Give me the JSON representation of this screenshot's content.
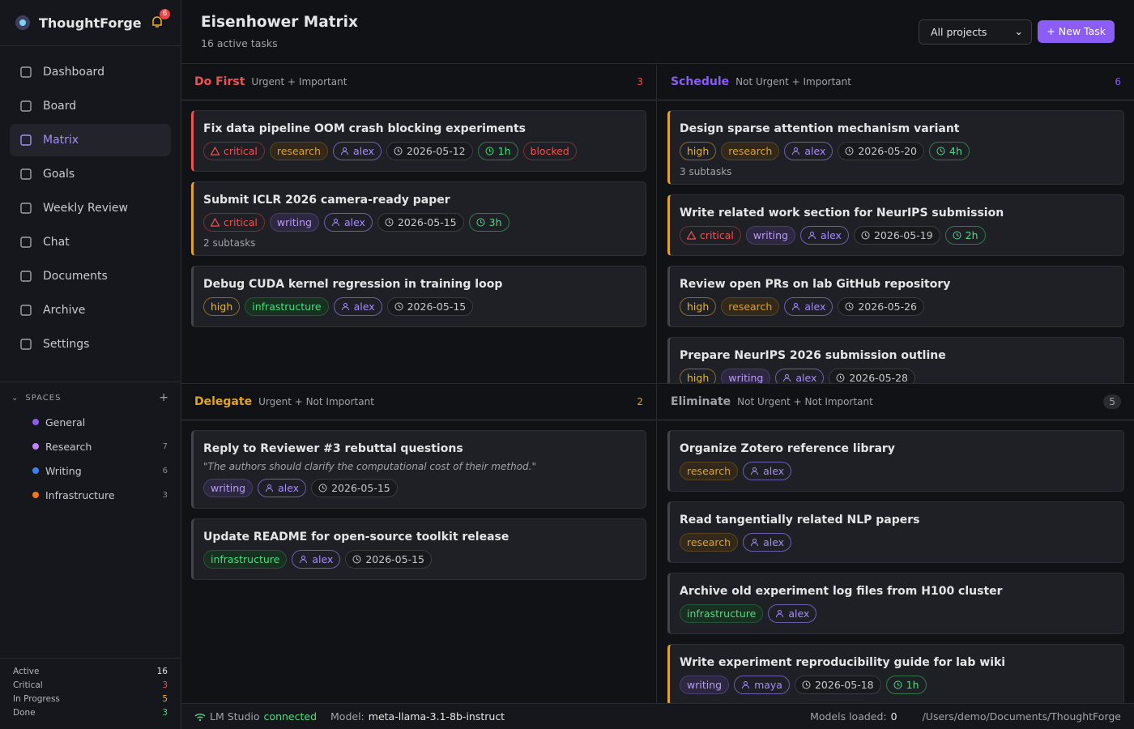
{
  "sidebar": {
    "brand": "ThoughtForge",
    "notifications": 6,
    "nav": [
      {
        "label": "Dashboard",
        "active": false
      },
      {
        "label": "Board",
        "active": false
      },
      {
        "label": "Matrix",
        "active": true
      },
      {
        "label": "Goals",
        "active": false
      },
      {
        "label": "Weekly Review",
        "active": false
      },
      {
        "label": "Chat",
        "active": false
      },
      {
        "label": "Documents",
        "active": false
      },
      {
        "label": "Archive",
        "active": false
      },
      {
        "label": "Settings",
        "active": false
      }
    ],
    "spaces_title": "SPACES",
    "spaces": [
      {
        "label": "General",
        "color": "#8b5cf6",
        "count": null
      },
      {
        "label": "Research",
        "color": "#c084fc",
        "count": 7
      },
      {
        "label": "Writing",
        "color": "#3b82f6",
        "count": 6
      },
      {
        "label": "Infrastructure",
        "color": "#f97316",
        "count": 3
      }
    ],
    "stats": [
      {
        "label": "Active",
        "value": 16,
        "color": "#e5e5e7"
      },
      {
        "label": "Critical",
        "value": 3,
        "color": "#f05252"
      },
      {
        "label": "In Progress",
        "value": 5,
        "color": "#f0b429"
      },
      {
        "label": "Done",
        "value": 3,
        "color": "#4ade80"
      }
    ]
  },
  "header": {
    "title": "Eisenhower Matrix",
    "subtitle": "16 active tasks",
    "filter": "All projects",
    "button": "+ New Task"
  },
  "quadrants": [
    {
      "title": "Do First",
      "subtitle": "Urgent + Important",
      "count": 3,
      "color": "#f05252",
      "pill": false,
      "tasks": [
        {
          "title": "Fix data pipeline OOM crash blocking experiments",
          "accent": "#f05252",
          "tags": [
            {
              "label": "critical",
              "style": "red",
              "icon": "warn"
            },
            {
              "label": "research",
              "style": "brown",
              "icon": null
            },
            {
              "label": "alex",
              "style": "user",
              "icon": "user"
            },
            {
              "label": "2026-05-12",
              "style": "date",
              "icon": "clock"
            },
            {
              "label": "1h",
              "style": "estimate",
              "icon": "clock"
            },
            {
              "label": "blocked",
              "style": "red",
              "icon": null
            }
          ]
        },
        {
          "title": "Submit ICLR 2026 camera-ready paper",
          "accent": "#e0a526",
          "tags": [
            {
              "label": "critical",
              "style": "red",
              "icon": "warn"
            },
            {
              "label": "writing",
              "style": "violet",
              "icon": null
            },
            {
              "label": "alex",
              "style": "user",
              "icon": "user"
            },
            {
              "label": "2026-05-15",
              "style": "date",
              "icon": "clock"
            },
            {
              "label": "3h",
              "style": "estimate",
              "icon": "clock"
            }
          ],
          "subtasks": "2 subtasks"
        },
        {
          "title": "Debug CUDA kernel regression in training loop",
          "accent": "#44454c",
          "tags": [
            {
              "label": "high",
              "style": "amber",
              "icon": null
            },
            {
              "label": "infrastructure",
              "style": "green",
              "icon": null
            },
            {
              "label": "alex",
              "style": "user",
              "icon": "user"
            },
            {
              "label": "2026-05-15",
              "style": "date",
              "icon": "clock"
            }
          ]
        }
      ]
    },
    {
      "title": "Schedule",
      "subtitle": "Not Urgent + Important",
      "count": 6,
      "color": "#8b5cf6",
      "pill": false,
      "tasks": [
        {
          "title": "Design sparse attention mechanism variant",
          "accent": "#e0a526",
          "tags": [
            {
              "label": "high",
              "style": "amber",
              "icon": null
            },
            {
              "label": "research",
              "style": "brown",
              "icon": null
            },
            {
              "label": "alex",
              "style": "user",
              "icon": "user"
            },
            {
              "label": "2026-05-20",
              "style": "date",
              "icon": "clock"
            },
            {
              "label": "4h",
              "style": "estimate",
              "icon": "clock"
            }
          ],
          "subtasks": "3 subtasks"
        },
        {
          "title": "Write related work section for NeurIPS submission",
          "accent": "#e0a526",
          "tags": [
            {
              "label": "critical",
              "style": "red",
              "icon": "warn"
            },
            {
              "label": "writing",
              "style": "violet",
              "icon": null
            },
            {
              "label": "alex",
              "style": "user",
              "icon": "user"
            },
            {
              "label": "2026-05-19",
              "style": "date",
              "icon": "clock"
            },
            {
              "label": "2h",
              "style": "estimate",
              "icon": "clock"
            }
          ]
        },
        {
          "title": "Review open PRs on lab GitHub repository",
          "accent": "#44454c",
          "tags": [
            {
              "label": "high",
              "style": "amber",
              "icon": null
            },
            {
              "label": "research",
              "style": "brown",
              "icon": null
            },
            {
              "label": "alex",
              "style": "user",
              "icon": "user"
            },
            {
              "label": "2026-05-26",
              "style": "date",
              "icon": "clock"
            }
          ]
        },
        {
          "title": "Prepare NeurIPS 2026 submission outline",
          "accent": "#44454c",
          "tags": [
            {
              "label": "high",
              "style": "amber",
              "icon": null
            },
            {
              "label": "writing",
              "style": "violet",
              "icon": null
            },
            {
              "label": "alex",
              "style": "user",
              "icon": "user"
            },
            {
              "label": "2026-05-28",
              "style": "date",
              "icon": "clock"
            }
          ]
        }
      ]
    },
    {
      "title": "Delegate",
      "subtitle": "Urgent + Not Important",
      "count": 2,
      "color": "#e0a526",
      "pill": false,
      "tasks": [
        {
          "title": "Reply to Reviewer #3 rebuttal questions",
          "accent": "#44454c",
          "quote": "\"The authors should clarify the computational cost of their method.\"",
          "tags": [
            {
              "label": "writing",
              "style": "violet",
              "icon": null
            },
            {
              "label": "alex",
              "style": "user",
              "icon": "user"
            },
            {
              "label": "2026-05-15",
              "style": "date",
              "icon": "clock"
            }
          ]
        },
        {
          "title": "Update README for open-source toolkit release",
          "accent": "#44454c",
          "tags": [
            {
              "label": "infrastructure",
              "style": "green",
              "icon": null
            },
            {
              "label": "alex",
              "style": "user",
              "icon": "user"
            },
            {
              "label": "2026-05-15",
              "style": "date",
              "icon": "clock"
            }
          ]
        }
      ]
    },
    {
      "title": "Eliminate",
      "subtitle": "Not Urgent + Not Important",
      "count": 5,
      "color": "#a1a1aa",
      "pill": true,
      "tasks": [
        {
          "title": "Organize Zotero reference library",
          "accent": "#44454c",
          "tags": [
            {
              "label": "research",
              "style": "brown",
              "icon": null
            },
            {
              "label": "alex",
              "style": "user",
              "icon": "user"
            }
          ]
        },
        {
          "title": "Read tangentially related NLP papers",
          "accent": "#44454c",
          "tags": [
            {
              "label": "research",
              "style": "brown",
              "icon": null
            },
            {
              "label": "alex",
              "style": "user",
              "icon": "user"
            }
          ]
        },
        {
          "title": "Archive old experiment log files from H100 cluster",
          "accent": "#44454c",
          "tags": [
            {
              "label": "infrastructure",
              "style": "green",
              "icon": null
            },
            {
              "label": "alex",
              "style": "user",
              "icon": "user"
            }
          ]
        },
        {
          "title": "Write experiment reproducibility guide for lab wiki",
          "accent": "#e0a526",
          "tags": [
            {
              "label": "writing",
              "style": "violet",
              "icon": null
            },
            {
              "label": "maya",
              "style": "user",
              "icon": "user"
            },
            {
              "label": "2026-05-18",
              "style": "date",
              "icon": "clock"
            },
            {
              "label": "1h",
              "style": "estimate",
              "icon": "clock"
            }
          ]
        }
      ]
    }
  ],
  "status": {
    "provider": "LM Studio",
    "state": "connected",
    "model_label": "Model:",
    "model": "meta-llama-3.1-8b-instruct",
    "loaded_label": "Models loaded:",
    "loaded": 0,
    "path": "/Users/demo/Documents/ThoughtForge"
  }
}
